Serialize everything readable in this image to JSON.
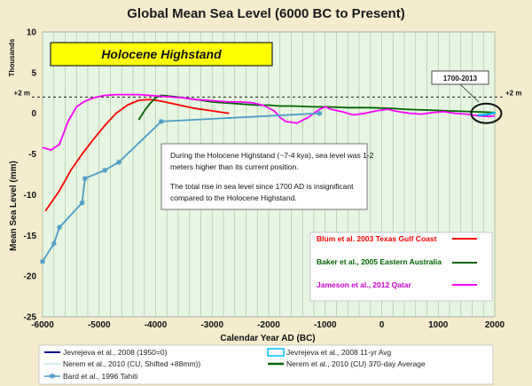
{
  "chart_data": {
    "type": "line",
    "title": "Global Mean Sea Level (6000 BC to Present)",
    "xlabel": "Calendar Year AD (BC)",
    "ylabel": "Mean Sea Level (mm)",
    "y_multiplier_label": "Thousands",
    "xlim": [
      -6000,
      2000
    ],
    "ylim": [
      -25,
      10
    ],
    "x_ticks": [
      -6000,
      -5000,
      -4000,
      -3000,
      -2000,
      -1000,
      0,
      1000,
      2000
    ],
    "x_tick_labels": [
      "-6000",
      "-5000",
      "-4000",
      "-3000",
      "-2000",
      "-1000",
      "0",
      "1000",
      "2000"
    ],
    "y_ticks": [
      10,
      5,
      0,
      -5,
      -10,
      -15,
      -20,
      -25
    ],
    "y_tick_labels": [
      "10",
      "5",
      "0",
      "-5",
      "-10",
      "-15",
      "-20",
      "-25"
    ],
    "grid": "vertical",
    "reference_line": {
      "y": 2,
      "label_left": "+2 m",
      "label_right": "+2 m"
    },
    "highstand_label": "Holocene Highstand",
    "callout": {
      "label": "1700-2013"
    },
    "annotation_lines": [
      "During the Holocene Highstand (~7-4 kya), sea level was 1-2",
      "meters higher than its current position.",
      "",
      "The total rise in sea level since 1700 AD is insignificant",
      "compared to the Holocene Highstand."
    ],
    "inner_legend": [
      {
        "name": "Blum et al. 2003 Texas Gulf Coast",
        "color": "#ff0000"
      },
      {
        "name": "Baker et al., 2005 Eastern Australia",
        "color": "#006400"
      },
      {
        "name": "Jameson et al., 2012 Qatar",
        "color": "#ff00ff"
      }
    ],
    "bottom_legend": [
      {
        "name": "Jevrejeva et al., 2008 (1950=0)",
        "color": "#00008b",
        "style": "line"
      },
      {
        "name": "Jevrejeva et al., 2008 11-yr Avg",
        "color": "#00bfff",
        "style": "box"
      },
      {
        "name": "Nerem et al., 2010 (CU, Shifted +88mm))",
        "color": "#add8e6",
        "style": "thin"
      },
      {
        "name": "Nerem et al., 2010 (CU) 370-day Average",
        "color": "#00008b",
        "style": "dgreen"
      },
      {
        "name": "Bard et al., 1996 Tahiti",
        "color": "#4a9cc8",
        "style": "star"
      }
    ],
    "series": [
      {
        "name": "Blum et al. 2003 Texas Gulf Coast",
        "color": "#ff0000",
        "x": [
          -5950,
          -5700,
          -5500,
          -5300,
          -5100,
          -4900,
          -4700,
          -4500,
          -4300,
          -4100,
          -3900,
          -3700,
          -3500,
          -3300,
          -3100,
          -2900,
          -2700
        ],
        "y": [
          -12,
          -9.5,
          -7,
          -5,
          -3.2,
          -1.5,
          0,
          1,
          1.6,
          1.7,
          1.5,
          1.2,
          0.9,
          0.6,
          0.4,
          0.2,
          0
        ]
      },
      {
        "name": "Baker et al., 2005 Eastern Australia",
        "color": "#006400",
        "x": [
          -4300,
          -4200,
          -4100,
          -4000,
          -3900,
          -3800,
          -3600,
          -3400,
          -3200,
          -3000,
          -2800,
          -2600,
          -2400,
          -2200,
          -2000,
          -1800,
          -1600,
          -1400,
          -1200,
          -1000,
          -800,
          -600,
          -400,
          -200,
          0,
          200,
          400,
          600,
          800,
          1000,
          1200,
          1400,
          1600,
          1800,
          2000
        ],
        "y": [
          -0.8,
          0.3,
          1.2,
          1.9,
          2.2,
          2.15,
          2.0,
          1.8,
          1.6,
          1.4,
          1.3,
          1.2,
          1.1,
          1.0,
          1.0,
          0.9,
          0.9,
          0.85,
          0.8,
          0.8,
          0.75,
          0.7,
          0.7,
          0.7,
          0.65,
          0.6,
          0.5,
          0.45,
          0.4,
          0.35,
          0.3,
          0.25,
          0.2,
          0.15,
          0.1
        ]
      },
      {
        "name": "Jameson et al., 2012 Qatar",
        "color": "#ff00ff",
        "x": [
          -6000,
          -5850,
          -5700,
          -5550,
          -5400,
          -5250,
          -5100,
          -4900,
          -4700,
          -4500,
          -4300,
          -4100,
          -3900,
          -3700,
          -3500,
          -3300,
          -3100,
          -2900,
          -2700,
          -2500,
          -2300,
          -2100,
          -1900,
          -1800,
          -1700,
          -1500,
          -1300,
          -1100,
          -1000,
          -900,
          -700,
          -500,
          -300,
          -100,
          100,
          300,
          500,
          700,
          900,
          1100,
          1300,
          1500,
          1700,
          1900,
          2000
        ],
        "y": [
          -4.2,
          -4.5,
          -3.8,
          -1.0,
          0.8,
          1.5,
          1.9,
          2.2,
          2.3,
          2.3,
          2.3,
          2.2,
          2.1,
          2.0,
          1.9,
          1.7,
          1.6,
          1.5,
          1.4,
          1.4,
          1.3,
          1.0,
          0.3,
          -0.5,
          -1.0,
          -1.2,
          -0.5,
          0.5,
          0.8,
          0.5,
          0.2,
          -0.2,
          0.0,
          0.3,
          0.5,
          0.2,
          0.0,
          -0.1,
          0.1,
          0.2,
          0.0,
          -0.1,
          -0.3,
          -0.4,
          -0.3
        ]
      },
      {
        "name": "Bard et al., 1996 Tahiti",
        "color": "#4a9cc8",
        "markers": true,
        "x": [
          -6000,
          -5800,
          -5700,
          -5300,
          -5250,
          -4900,
          -4650,
          -3900,
          -1100
        ],
        "y": [
          -18.2,
          -16,
          -14,
          -11,
          -8,
          -7,
          -6,
          -1,
          0
        ]
      },
      {
        "name": "Jevrejeva et al., 2008 (1950=0)",
        "color": "#00008b",
        "x": [
          1700,
          1750,
          1800,
          1850,
          1900,
          1950,
          2000,
          2013
        ],
        "y": [
          -0.25,
          -0.22,
          -0.2,
          -0.18,
          -0.12,
          0.0,
          0.05,
          0.08
        ]
      },
      {
        "name": "Jevrejeva et al., 2008 11-yr Avg",
        "color": "#00bfff",
        "x": [
          1700,
          1750,
          1800,
          1850,
          1900,
          1950,
          2000,
          2013
        ],
        "y": [
          -0.22,
          -0.2,
          -0.18,
          -0.15,
          -0.1,
          0.02,
          0.08,
          0.1
        ]
      }
    ]
  }
}
